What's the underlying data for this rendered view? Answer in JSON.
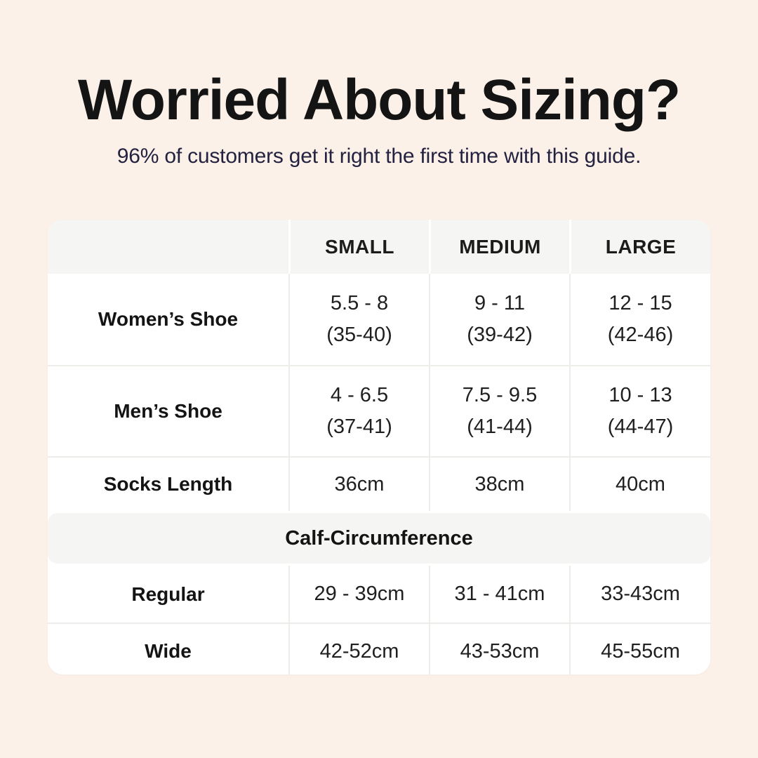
{
  "colors": {
    "page_bg": "#FCF1E8",
    "card_bg": "#FFFFFF",
    "band_bg": "#F5F5F3",
    "border": "#EDEDEA",
    "title_text": "#141414",
    "subtitle_text": "#232240",
    "cell_text": "#1F1F1F"
  },
  "header": {
    "title": "Worried About Sizing?",
    "subtitle": "96% of customers get it right the first time with this guide."
  },
  "table": {
    "columns": [
      "SMALL",
      "MEDIUM",
      "LARGE"
    ],
    "rows": [
      {
        "label": "Women’s Shoe",
        "cells": [
          {
            "line1": "5.5 - 8",
            "line2": "(35-40)"
          },
          {
            "line1": "9 - 11",
            "line2": "(39-42)"
          },
          {
            "line1": "12 - 15",
            "line2": "(42-46)"
          }
        ]
      },
      {
        "label": "Men’s Shoe",
        "cells": [
          {
            "line1": "4 - 6.5",
            "line2": "(37-41)"
          },
          {
            "line1": "7.5 - 9.5",
            "line2": "(41-44)"
          },
          {
            "line1": "10 - 13",
            "line2": "(44-47)"
          }
        ]
      },
      {
        "label": "Socks Length",
        "cells": [
          {
            "value": "36cm"
          },
          {
            "value": "38cm"
          },
          {
            "value": "40cm"
          }
        ]
      }
    ],
    "section_title": "Calf-Circumference",
    "section_rows": [
      {
        "label": "Regular",
        "cells": [
          {
            "value": "29 - 39cm"
          },
          {
            "value": "31 - 41cm"
          },
          {
            "value": "33-43cm"
          }
        ]
      },
      {
        "label": "Wide",
        "cells": [
          {
            "value": "42-52cm"
          },
          {
            "value": "43-53cm"
          },
          {
            "value": "45-55cm"
          }
        ]
      }
    ]
  },
  "chart_data": {
    "type": "table",
    "title": "Worried About Sizing?",
    "subtitle": "96% of customers get it right the first time with this guide.",
    "columns": [
      "",
      "SMALL",
      "MEDIUM",
      "LARGE"
    ],
    "rows": [
      [
        "Women’s Shoe",
        "5.5 - 8 (35-40)",
        "9 - 11 (39-42)",
        "12 - 15 (42-46)"
      ],
      [
        "Men’s Shoe",
        "4 - 6.5 (37-41)",
        "7.5 - 9.5 (41-44)",
        "10 - 13 (44-47)"
      ],
      [
        "Socks Length",
        "36cm",
        "38cm",
        "40cm"
      ],
      [
        "Calf-Circumference",
        "",
        "",
        ""
      ],
      [
        "Regular",
        "29 - 39cm",
        "31 - 41cm",
        "33-43cm"
      ],
      [
        "Wide",
        "42-52cm",
        "43-53cm",
        "45-55cm"
      ]
    ],
    "layout": {
      "section_header_row_index": 3,
      "header_background": "#F5F5F3",
      "body_background": "#FFFFFF"
    }
  }
}
